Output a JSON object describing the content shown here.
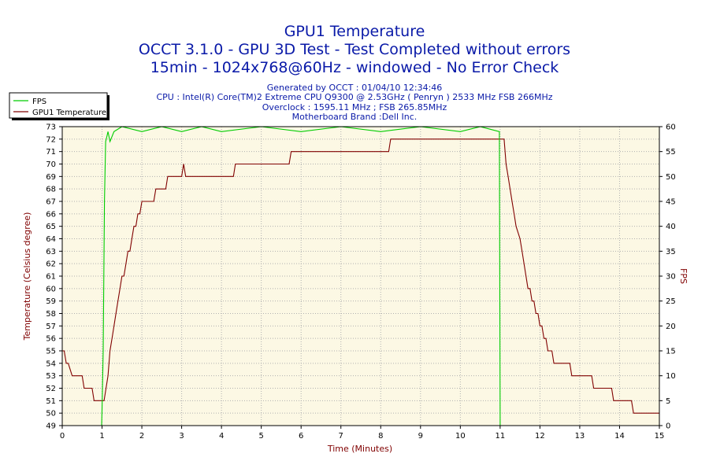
{
  "header": {
    "title": "GPU1 Temperature",
    "subtitle1": "OCCT 3.1.0 - GPU 3D Test - Test Completed without errors",
    "subtitle2": "15min - 1024x768@60Hz - windowed - No Error Check",
    "info": [
      "Generated by OCCT : 01/04/10 12:34:46",
      "CPU : Intel(R) Core(TM)2 Extreme CPU Q9300 @ 2.53GHz ( Penryn ) 2533 MHz FSB 266MHz",
      "Overclock : 1595.11 MHz ; FSB 265.85MHz",
      "Motherboard Brand :Dell Inc."
    ]
  },
  "colors": {
    "fps": "#00cc00",
    "temperature": "#800000",
    "plot_background": "#fcf8e4",
    "grid": "#b0b0b0",
    "title": "#0a1aa8"
  },
  "chart_data": {
    "type": "line",
    "xlabel": "Time (Minutes)",
    "ylabel": "Temperature (Celsius degree)",
    "y2label": "FPS",
    "xlim": [
      0,
      15
    ],
    "ylim": [
      49,
      73
    ],
    "y2lim": [
      0,
      60
    ],
    "xticks": [
      "0",
      "1",
      "2",
      "3",
      "4",
      "5",
      "6",
      "7",
      "8",
      "9",
      "10",
      "11",
      "12",
      "13",
      "14",
      "15"
    ],
    "yticks": [
      "49",
      "50",
      "51",
      "52",
      "53",
      "54",
      "55",
      "56",
      "57",
      "58",
      "59",
      "60",
      "61",
      "62",
      "63",
      "64",
      "65",
      "66",
      "67",
      "68",
      "69",
      "70",
      "71",
      "72",
      "73"
    ],
    "y2ticks": [
      "0",
      "5",
      "10",
      "15",
      "20",
      "25",
      "30",
      "35",
      "40",
      "45",
      "50",
      "55",
      "60"
    ],
    "legend_position": "top-left",
    "grid": true,
    "series": [
      {
        "name": "FPS",
        "axis": "right",
        "x": [
          0.0,
          0.99,
          1.0,
          1.03,
          1.06,
          1.09,
          1.12,
          1.15,
          1.2,
          1.3,
          1.5,
          2.0,
          2.5,
          3.0,
          3.5,
          4.0,
          5.0,
          6.0,
          7.0,
          8.0,
          9.0,
          10.0,
          10.5,
          10.98,
          11.0,
          11.02,
          12.0,
          15.0
        ],
        "values": [
          0,
          0,
          3,
          15,
          45,
          57,
          58,
          59,
          57,
          59,
          60,
          59,
          60,
          59,
          60,
          59,
          60,
          59,
          60,
          59,
          60,
          59,
          60,
          59,
          0,
          0,
          0,
          0
        ]
      },
      {
        "name": "GPU1 Temperature",
        "axis": "left",
        "x": [
          0.0,
          0.05,
          0.1,
          0.15,
          0.25,
          0.5,
          0.55,
          0.75,
          0.8,
          1.05,
          1.1,
          1.15,
          1.2,
          1.25,
          1.3,
          1.35,
          1.4,
          1.45,
          1.5,
          1.55,
          1.6,
          1.65,
          1.7,
          1.75,
          1.8,
          1.85,
          1.9,
          1.95,
          2.0,
          2.3,
          2.35,
          2.6,
          2.65,
          3.0,
          3.05,
          3.1,
          3.15,
          4.3,
          4.35,
          5.7,
          5.75,
          8.2,
          8.25,
          11.1,
          11.15,
          11.2,
          11.25,
          11.3,
          11.35,
          11.4,
          11.5,
          11.55,
          11.6,
          11.65,
          11.7,
          11.75,
          11.8,
          11.85,
          11.9,
          11.95,
          12.0,
          12.05,
          12.1,
          12.15,
          12.2,
          12.3,
          12.35,
          12.45,
          12.5,
          12.75,
          12.8,
          13.0,
          13.05,
          13.3,
          13.35,
          13.8,
          13.85,
          14.3,
          14.35,
          14.8,
          14.85,
          15.0
        ],
        "values": [
          55,
          55,
          54,
          54,
          53,
          53,
          52,
          52,
          51,
          51,
          52,
          53,
          55,
          56,
          57,
          58,
          59,
          60,
          61,
          61,
          62,
          63,
          63,
          64,
          65,
          65,
          66,
          66,
          67,
          67,
          68,
          68,
          69,
          69,
          70,
          69,
          69,
          69,
          70,
          70,
          71,
          71,
          72,
          72,
          70,
          69,
          68,
          67,
          66,
          65,
          64,
          63,
          62,
          61,
          60,
          60,
          59,
          59,
          58,
          58,
          57,
          57,
          56,
          56,
          55,
          55,
          54,
          54,
          54,
          54,
          53,
          53,
          53,
          53,
          52,
          52,
          51,
          51,
          50,
          50,
          50,
          50
        ]
      }
    ]
  }
}
